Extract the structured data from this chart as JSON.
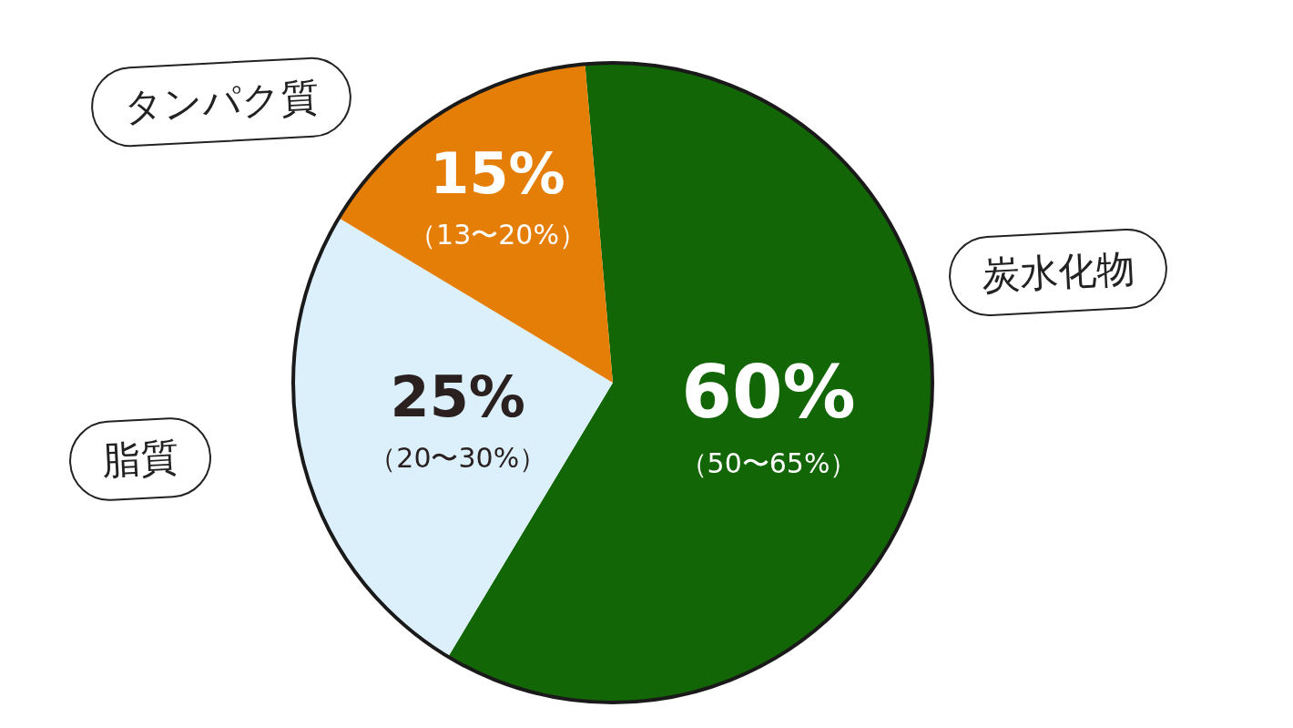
{
  "chart_data": {
    "type": "pie",
    "categories": [
      "炭水化物",
      "脂質",
      "タンパク質"
    ],
    "values": [
      60,
      25,
      15
    ],
    "colors": [
      "#136605",
      "#dcf0fc",
      "#e57e07"
    ],
    "value_labels": [
      "60%\n（50〜65%）",
      "25%\n（20〜30%）",
      "15%\n（13〜20%）"
    ],
    "legend": false
  }
}
